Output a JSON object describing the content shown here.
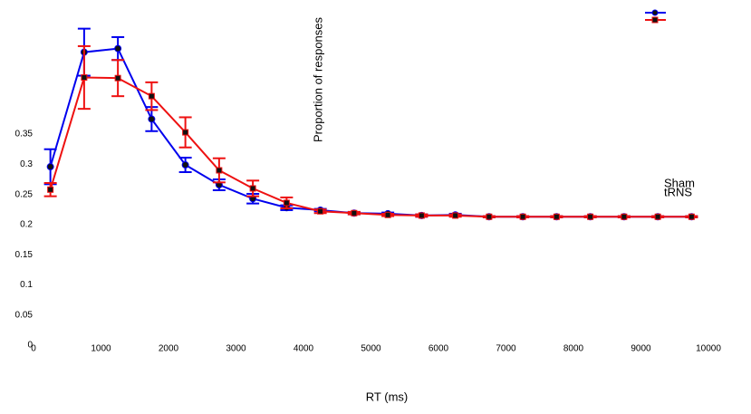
{
  "chart_data": {
    "type": "line",
    "x_label": "RT (ms)",
    "y_label": "Proportion of responses",
    "x": [
      250,
      750,
      1250,
      1750,
      2250,
      2750,
      3250,
      3750,
      4250,
      4750,
      5250,
      5750,
      6250,
      6750,
      7250,
      7750,
      8250,
      8750,
      9250,
      9750
    ],
    "series": [
      {
        "name": "Sham",
        "color": "#0000ee",
        "marker": "circle",
        "values": [
          0.296,
          0.486,
          0.492,
          0.375,
          0.299,
          0.266,
          0.243,
          0.228,
          0.224,
          0.219,
          0.218,
          0.215,
          0.216,
          0.213,
          0.213,
          0.213,
          0.213,
          0.213,
          0.213,
          0.213
        ],
        "errors": [
          0.029,
          0.039,
          0.019,
          0.02,
          0.012,
          0.009,
          0.008,
          0.004,
          0.002,
          0.002,
          0.002,
          0.002,
          0.002,
          0.001,
          0.001,
          0.001,
          0.001,
          0.001,
          0.001,
          0.001
        ]
      },
      {
        "name": "tRNS",
        "color": "#ee1111",
        "marker": "square",
        "values": [
          0.258,
          0.444,
          0.443,
          0.413,
          0.353,
          0.29,
          0.26,
          0.236,
          0.222,
          0.219,
          0.216,
          0.215,
          0.215,
          0.213,
          0.213,
          0.213,
          0.213,
          0.213,
          0.213,
          0.213
        ],
        "errors": [
          0.011,
          0.052,
          0.03,
          0.023,
          0.025,
          0.02,
          0.013,
          0.009,
          0.003,
          0.002,
          0.002,
          0.002,
          0.002,
          0.001,
          0.001,
          0.001,
          0.001,
          0.001,
          0.001,
          0.001
        ]
      }
    ],
    "xlim": [
      0,
      10000
    ],
    "xticks": [
      0,
      1000,
      2000,
      3000,
      4000,
      5000,
      6000,
      7000,
      8000,
      9000,
      10000
    ],
    "ylim": [
      0,
      0.55
    ],
    "yticks": [
      0,
      0.05,
      0.1,
      0.15,
      0.2,
      0.25,
      0.3,
      0.35
    ],
    "grid": false
  }
}
